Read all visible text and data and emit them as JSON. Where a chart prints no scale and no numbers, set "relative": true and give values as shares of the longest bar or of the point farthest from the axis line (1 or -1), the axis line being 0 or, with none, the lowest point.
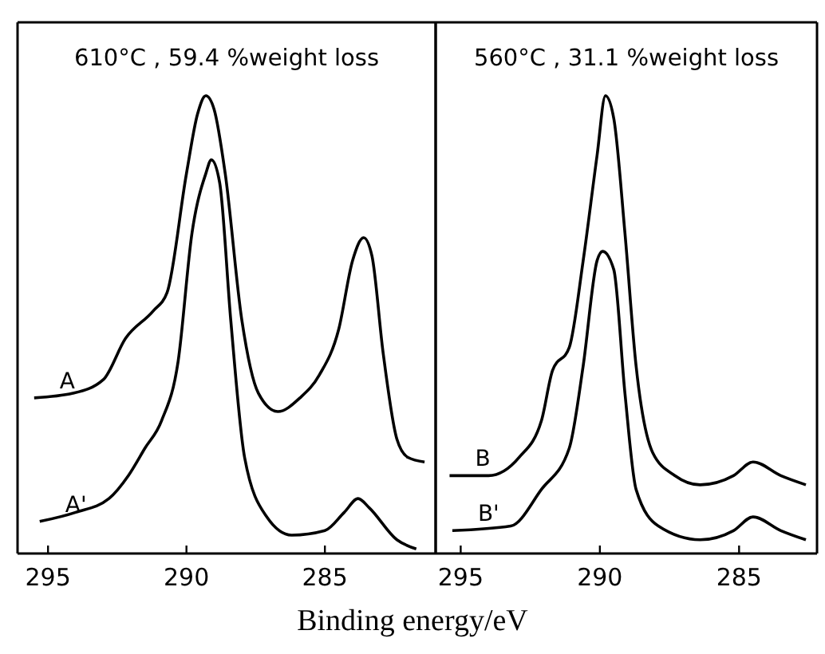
{
  "chart_data": [
    {
      "type": "line",
      "title": "610°C , 59.4 %weight loss",
      "xlabel": "Binding energy/eV",
      "relative": true,
      "xlim": [
        296.1,
        281.0
      ],
      "xticks": [
        295,
        290,
        285
      ],
      "line_style": "solid",
      "marker": "none",
      "series": [
        {
          "name": "A",
          "color": "#000000",
          "x": [
            295.5,
            294.1,
            293.0,
            292.2,
            291.2,
            290.7,
            290.0,
            289.6,
            289.3,
            289.0,
            288.6,
            288.0,
            287.4,
            286.7,
            285.9,
            285.2,
            284.5,
            284.0,
            283.6,
            283.3,
            282.9,
            282.4,
            282.0,
            281.4
          ],
          "values": [
            0.34,
            0.35,
            0.38,
            0.47,
            0.53,
            0.57,
            0.83,
            0.96,
            1,
            0.97,
            0.83,
            0.51,
            0.35,
            0.31,
            0.34,
            0.39,
            0.49,
            0.64,
            0.69,
            0.65,
            0.44,
            0.25,
            0.21,
            0.2
          ]
        },
        {
          "name": "A'",
          "color": "#000000",
          "x": [
            295.3,
            294.0,
            292.8,
            292.1,
            291.5,
            290.9,
            290.3,
            289.8,
            289.3,
            289.1,
            288.8,
            288.4,
            287.9,
            287.1,
            286.2,
            285.0,
            284.3,
            283.8,
            283.4,
            282.4,
            281.7
          ],
          "values": [
            0.07,
            0.09,
            0.12,
            0.17,
            0.23,
            0.29,
            0.42,
            0.7,
            0.83,
            0.86,
            0.81,
            0.51,
            0.21,
            0.08,
            0.04,
            0.05,
            0.09,
            0.12,
            0.1,
            0.03,
            0.01
          ]
        }
      ]
    },
    {
      "type": "line",
      "title": "560°C , 31.1 %weight loss",
      "relative": true,
      "xlim": [
        295.9,
        282.2
      ],
      "xticks": [
        295,
        290,
        285
      ],
      "line_style": "solid",
      "marker": "none",
      "series": [
        {
          "name": "B",
          "color": "#000000",
          "x": [
            295.4,
            294.0,
            292.9,
            292.1,
            291.7,
            291.1,
            290.6,
            290.1,
            289.8,
            289.5,
            289.1,
            288.7,
            288.1,
            287.3,
            286.4,
            285.2,
            284.5,
            283.5,
            282.6
          ],
          "values": [
            0.17,
            0.17,
            0.21,
            0.29,
            0.4,
            0.45,
            0.64,
            0.87,
            1,
            0.95,
            0.7,
            0.41,
            0.22,
            0.17,
            0.15,
            0.17,
            0.2,
            0.17,
            0.15
          ]
        },
        {
          "name": "B'",
          "color": "#000000",
          "x": [
            295.3,
            293.2,
            292.1,
            291.1,
            290.6,
            290.1,
            289.9,
            289.5,
            289.1,
            288.7,
            287.9,
            286.4,
            285.2,
            284.5,
            283.5,
            282.6
          ],
          "values": [
            0.05,
            0.06,
            0.14,
            0.23,
            0.41,
            0.64,
            0.66,
            0.62,
            0.35,
            0.14,
            0.06,
            0.03,
            0.05,
            0.08,
            0.05,
            0.03
          ]
        }
      ]
    }
  ]
}
